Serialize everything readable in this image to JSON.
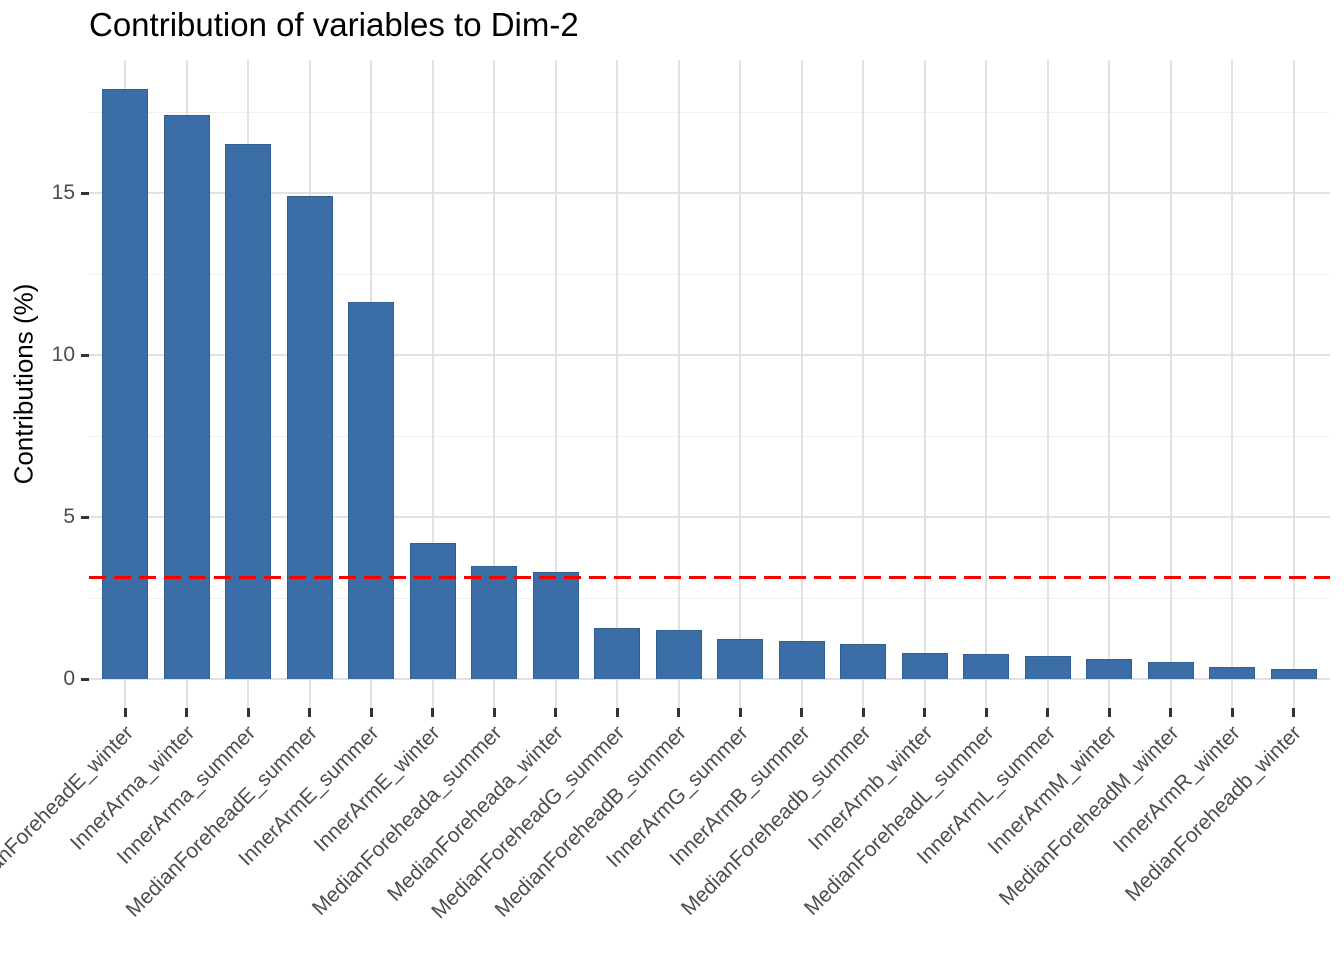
{
  "chart_data": {
    "type": "bar",
    "title": "Contribution of variables to Dim-2",
    "xlabel": "",
    "ylabel": "Contributions (%)",
    "categories": [
      "MedianForeheadE_winter",
      "InnerArma_winter",
      "InnerArma_summer",
      "MedianForeheadE_summer",
      "InnerArmE_summer",
      "InnerArmE_winter",
      "MedianForeheada_summer",
      "MedianForeheada_winter",
      "MedianForeheadG_summer",
      "MedianForeheadB_summer",
      "InnerArmG_summer",
      "InnerArmB_summer",
      "MedianForeheadb_summer",
      "InnerArmb_winter",
      "MedianForeheadL_summer",
      "InnerArmL_summer",
      "InnerArmM_winter",
      "MedianForeheadM_winter",
      "InnerArmR_winter",
      "MedianForeheadb_winter"
    ],
    "values": [
      18.2,
      17.4,
      16.5,
      14.9,
      11.65,
      4.2,
      3.5,
      3.3,
      1.57,
      1.52,
      1.23,
      1.17,
      1.08,
      0.8,
      0.77,
      0.71,
      0.62,
      0.52,
      0.37,
      0.31
    ],
    "yticks": [
      0,
      5,
      10,
      15
    ],
    "yticks_minor": [
      2.5,
      7.5,
      12.5,
      17.5
    ],
    "ylim": [
      0,
      19.1
    ],
    "grid": "on",
    "legend": "none",
    "reference_line": {
      "value": 3.125,
      "style": "dashed",
      "color": "#FF0000"
    },
    "colors": {
      "bar_fill": "#3B6DA6",
      "bar_edge": "#30608F",
      "axis_text": "#4D4D4D",
      "grid_major": "#E2E2E2",
      "grid_minor": "#F0F0F0",
      "tick_mark": "#333333"
    }
  }
}
